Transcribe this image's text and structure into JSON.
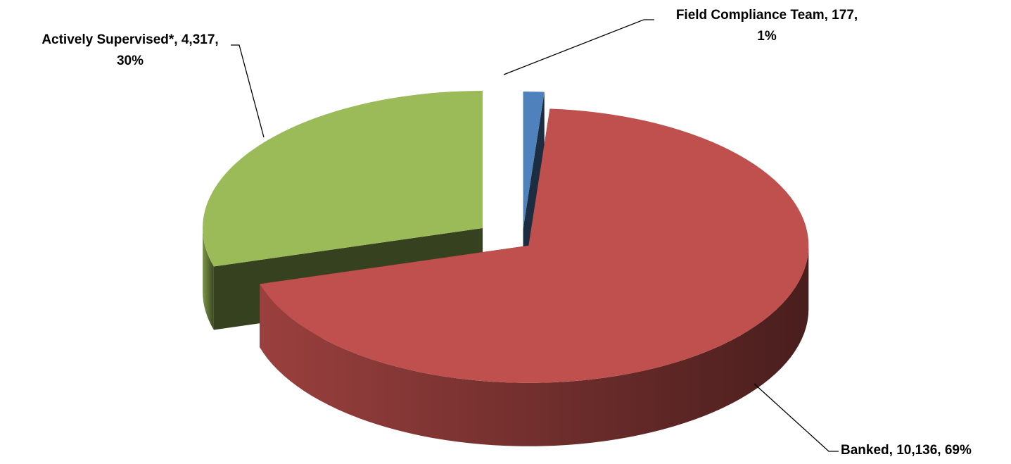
{
  "chart_data": {
    "type": "pie",
    "values": [
      177,
      10136,
      4317
    ],
    "value_labels": [
      "Field Compliance Team, 177, 1%",
      "Banked, 10,136, 69%",
      "Actively Supervised*, 4,317, 30%"
    ],
    "colors": [
      "#4f81bd",
      "#c0504d",
      "#9bbb59"
    ],
    "legend": false
  }
}
